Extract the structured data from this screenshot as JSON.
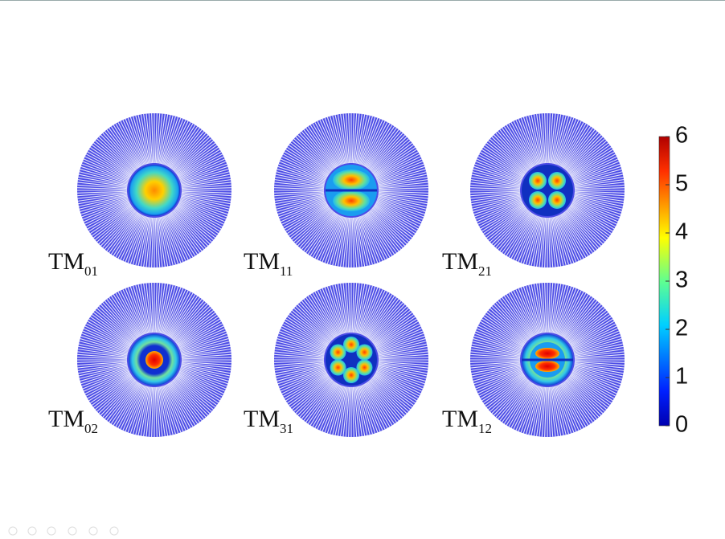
{
  "panels": [
    {
      "name": "TM",
      "index": "01"
    },
    {
      "name": "TM",
      "index": "11"
    },
    {
      "name": "TM",
      "index": "21"
    },
    {
      "name": "TM",
      "index": "02"
    },
    {
      "name": "TM",
      "index": "31"
    },
    {
      "name": "TM",
      "index": "12"
    }
  ],
  "colorbar": {
    "ticks": [
      0,
      1,
      2,
      3,
      4,
      5,
      6
    ]
  }
}
